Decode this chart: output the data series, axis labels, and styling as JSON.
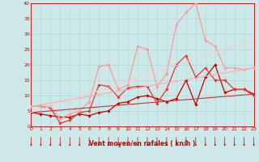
{
  "title": "",
  "xlabel": "Vent moyen/en rafales ( kn/h )",
  "xlim": [
    0,
    23
  ],
  "ylim": [
    0,
    40
  ],
  "yticks": [
    0,
    5,
    10,
    15,
    20,
    25,
    30,
    35,
    40
  ],
  "xticks": [
    0,
    1,
    2,
    3,
    4,
    5,
    6,
    7,
    8,
    9,
    10,
    11,
    12,
    13,
    14,
    15,
    16,
    17,
    18,
    19,
    20,
    21,
    22,
    23
  ],
  "bg_color": "#cce8e8",
  "grid_color": "#aad4d4",
  "lines": [
    {
      "x": [
        0,
        1,
        2,
        3,
        4,
        5,
        6,
        7,
        8,
        9,
        10,
        11,
        12,
        13,
        14,
        15,
        16,
        17,
        18,
        19,
        20,
        21,
        22,
        23
      ],
      "y": [
        4.5,
        4.0,
        3.5,
        3.0,
        3.0,
        4.0,
        3.5,
        4.5,
        5.0,
        7.5,
        8.0,
        9.5,
        10.0,
        9.0,
        8.0,
        9.0,
        15.0,
        7.0,
        16.0,
        20.0,
        11.0,
        12.0,
        12.0,
        10.5
      ],
      "color": "#cc0000",
      "lw": 0.9,
      "marker": "D",
      "ms": 1.8
    },
    {
      "x": [
        0,
        1,
        2,
        3,
        4,
        5,
        6,
        7,
        8,
        9,
        10,
        11,
        12,
        13,
        14,
        15,
        16,
        17,
        18,
        19,
        20,
        21,
        22,
        23
      ],
      "y": [
        6.5,
        6.5,
        6.0,
        1.0,
        2.0,
        4.5,
        5.0,
        13.5,
        13.0,
        9.5,
        12.5,
        13.0,
        13.0,
        7.5,
        12.0,
        20.0,
        23.0,
        16.0,
        19.0,
        15.0,
        15.0,
        12.0,
        12.0,
        10.0
      ],
      "color": "#ee3333",
      "lw": 0.9,
      "marker": "D",
      "ms": 1.8
    },
    {
      "x": [
        0,
        1,
        2,
        3,
        4,
        5,
        6,
        7,
        8,
        9,
        10,
        11,
        12,
        13,
        14,
        15,
        16,
        17,
        18,
        19,
        20,
        21,
        22,
        23
      ],
      "y": [
        6.5,
        6.5,
        6.5,
        2.5,
        4.0,
        5.0,
        8.0,
        19.5,
        20.0,
        12.0,
        13.5,
        26.0,
        25.0,
        13.0,
        17.0,
        33.0,
        37.0,
        40.0,
        28.0,
        26.0,
        19.0,
        19.0,
        18.5,
        19.0
      ],
      "color": "#ff9999",
      "lw": 0.9,
      "marker": "D",
      "ms": 1.8
    },
    {
      "x": [
        0,
        23
      ],
      "y": [
        4.5,
        10.5
      ],
      "color": "#cc3333",
      "lw": 0.8,
      "marker": null,
      "ms": 0
    },
    {
      "x": [
        0,
        23
      ],
      "y": [
        6.5,
        19.0
      ],
      "color": "#ffaaaa",
      "lw": 0.8,
      "marker": null,
      "ms": 0
    },
    {
      "x": [
        0,
        23
      ],
      "y": [
        4.5,
        28.0
      ],
      "color": "#ffcccc",
      "lw": 0.8,
      "marker": null,
      "ms": 0
    }
  ],
  "arrow_color": "#cc0000"
}
